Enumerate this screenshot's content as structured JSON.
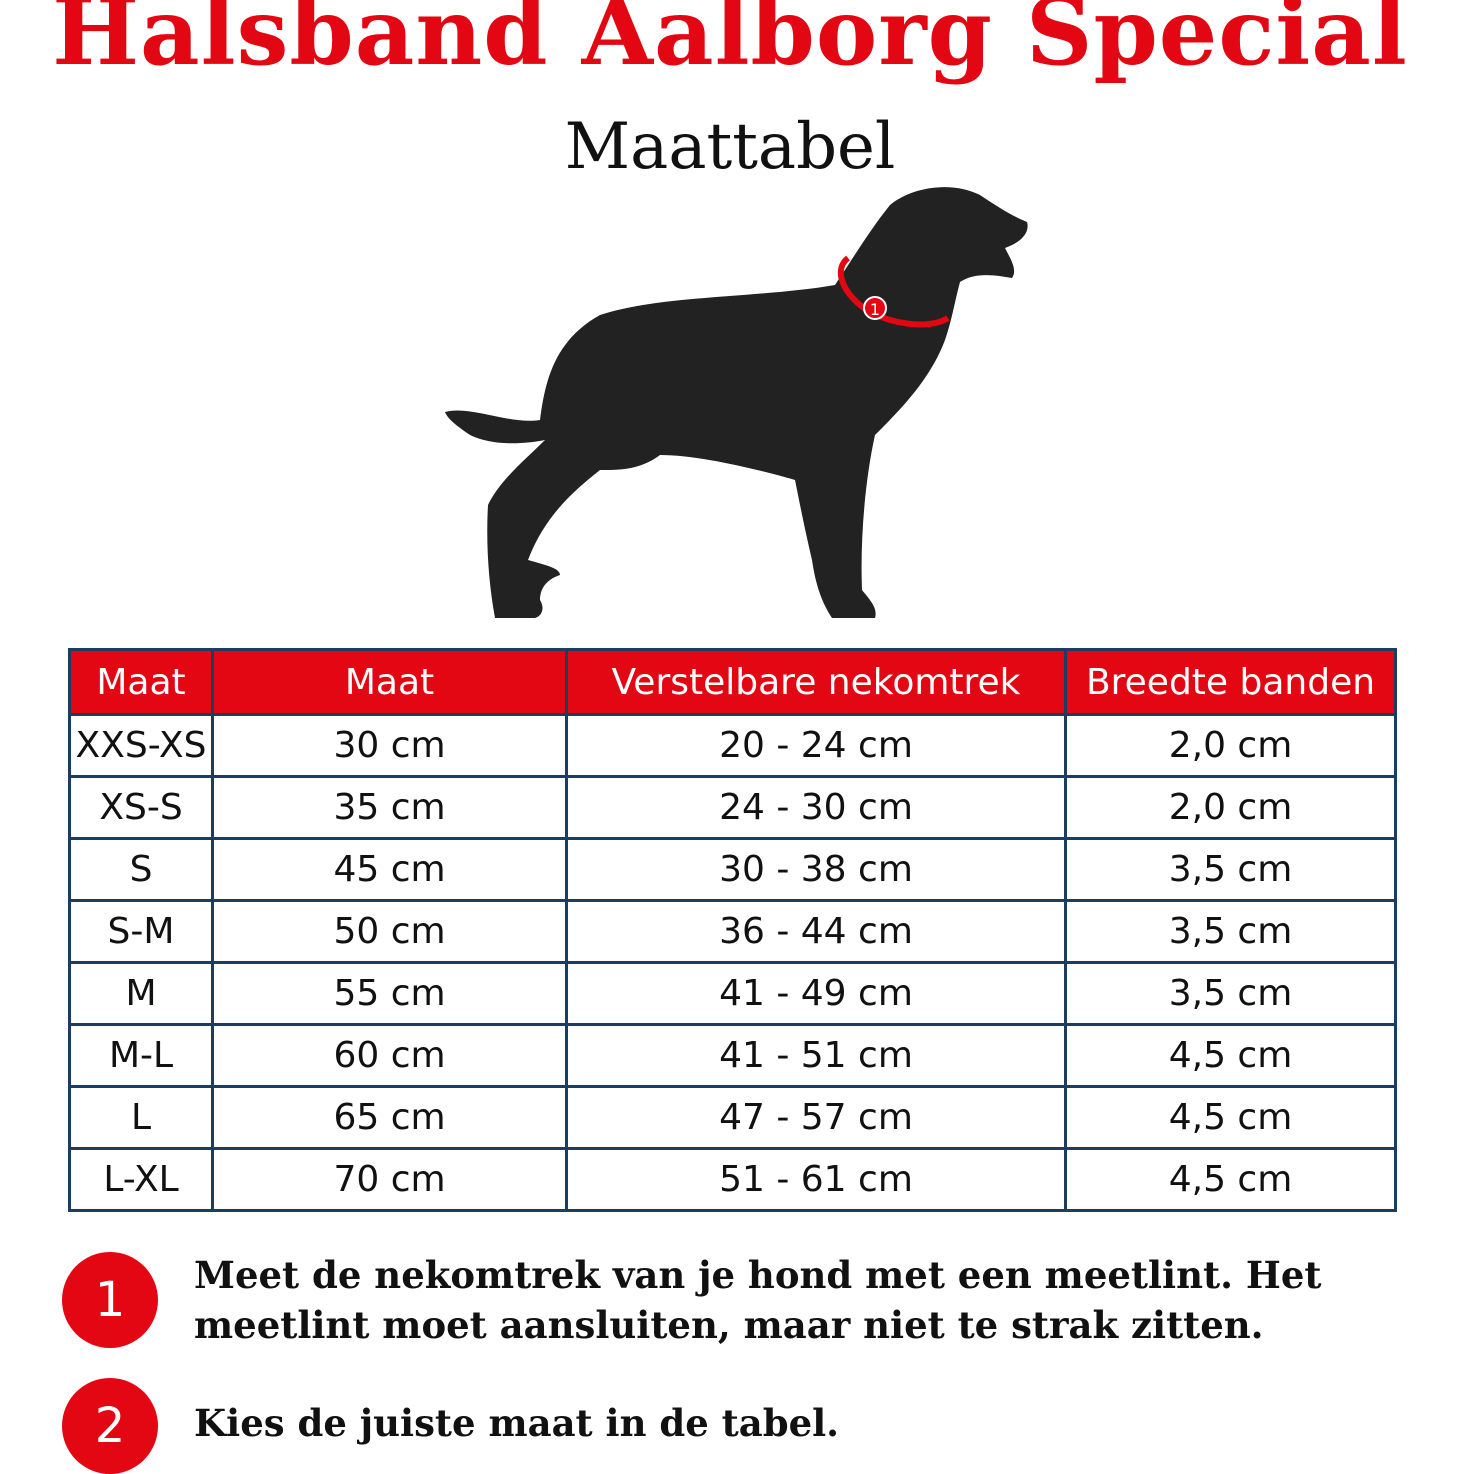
{
  "title": "Halsband Aalborg Special",
  "subtitle": "Maattabel",
  "colors": {
    "accent": "#e30613",
    "border": "#1c3d5e",
    "silhouette": "#222222"
  },
  "illustration": {
    "icon": "dog-silhouette-icon",
    "marker": "1"
  },
  "table": {
    "headers": [
      "Maat",
      "Maat",
      "Verstelbare nekomtrek",
      "Breedte banden"
    ],
    "rows": [
      [
        "XXS-XS",
        "30 cm",
        "20 - 24 cm",
        "2,0 cm"
      ],
      [
        "XS-S",
        "35 cm",
        "24 - 30 cm",
        "2,0 cm"
      ],
      [
        "S",
        "45 cm",
        "30 - 38 cm",
        "3,5 cm"
      ],
      [
        "S-M",
        "50 cm",
        "36 - 44 cm",
        "3,5 cm"
      ],
      [
        "M",
        "55 cm",
        "41 - 49 cm",
        "3,5 cm"
      ],
      [
        "M-L",
        "60 cm",
        "41 - 51 cm",
        "4,5 cm"
      ],
      [
        "L",
        "65 cm",
        "47 - 57 cm",
        "4,5 cm"
      ],
      [
        "L-XL",
        "70 cm",
        "51 - 61 cm",
        "4,5 cm"
      ]
    ]
  },
  "steps": [
    {
      "number": "1",
      "text": "Meet de nekomtrek van je hond met een meetlint. Het meetlint moet aansluiten, maar niet te strak zitten."
    },
    {
      "number": "2",
      "text": "Kies de juiste maat in de tabel."
    }
  ]
}
